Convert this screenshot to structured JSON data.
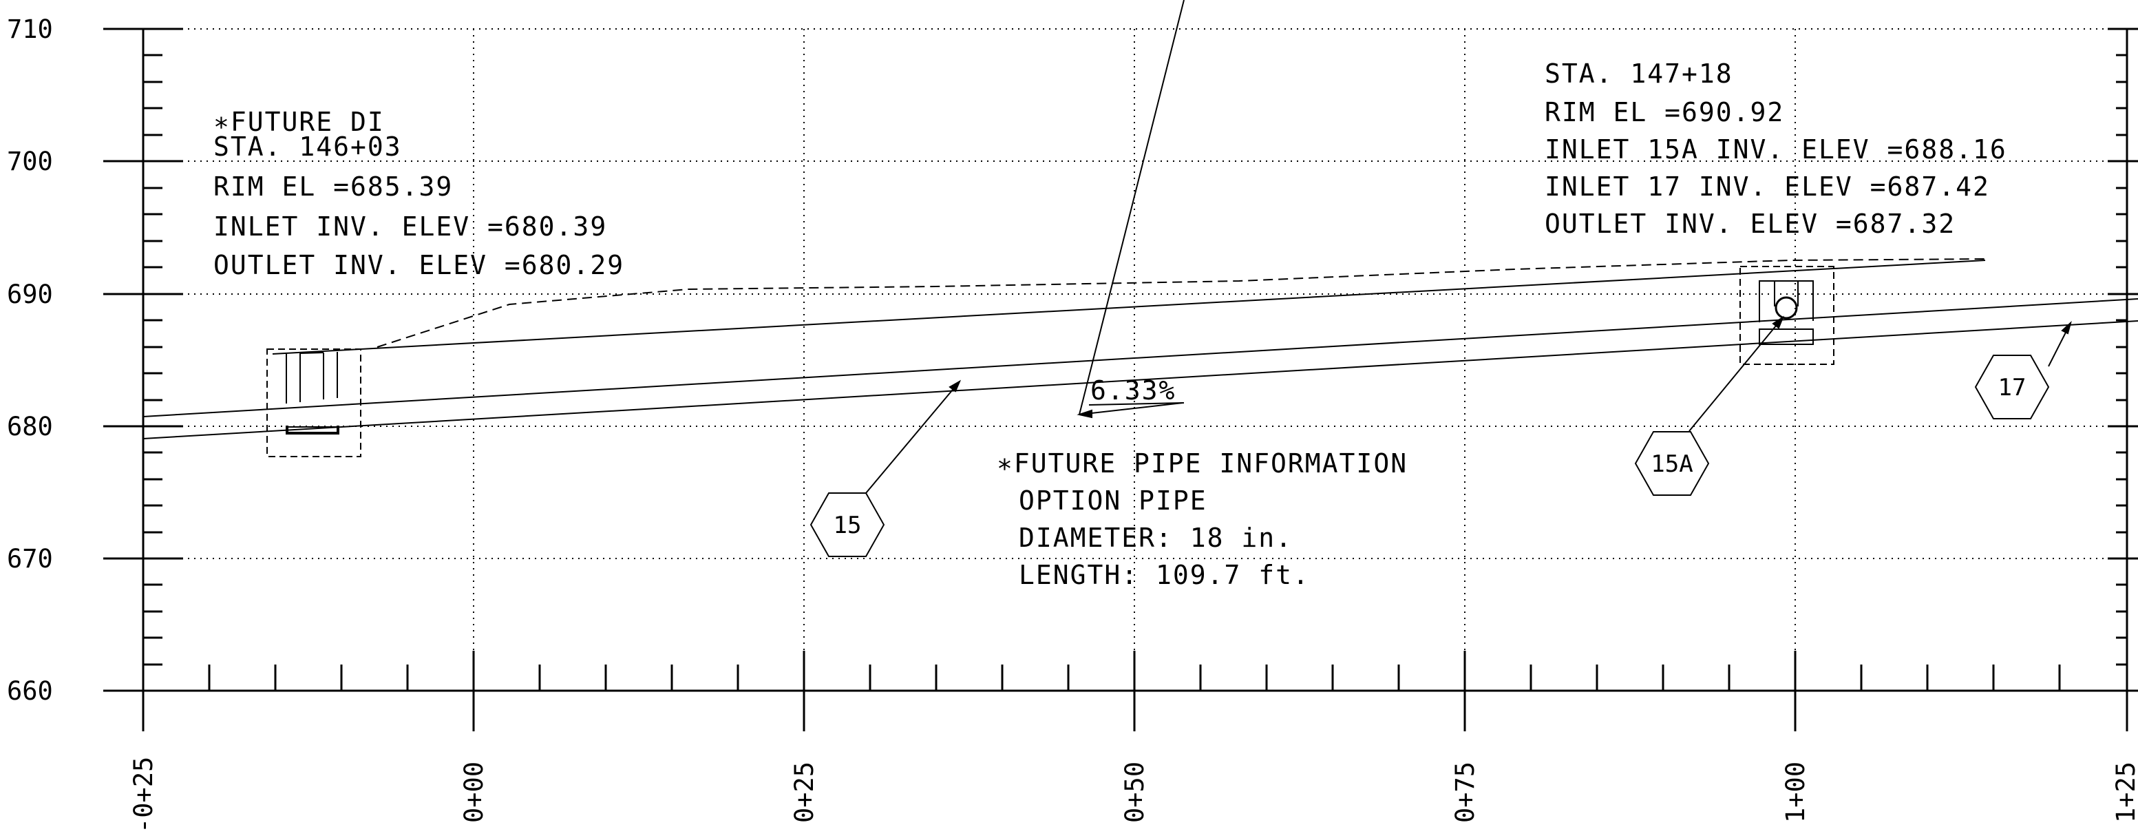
{
  "y_axis": {
    "labels": [
      "710",
      "700",
      "690",
      "680",
      "670",
      "660"
    ],
    "range": [
      660,
      710
    ],
    "units": "ft"
  },
  "x_axis": {
    "labels": [
      "-0+25",
      "0+00",
      "0+25",
      "0+50",
      "0+75",
      "1+00",
      "1+25"
    ]
  },
  "left_structure": {
    "lines": [
      "∗FUTURE DI",
      "STA. 146+03",
      "RIM EL =685.39",
      "INLET INV. ELEV =680.39",
      "OUTLET INV. ELEV =680.29"
    ]
  },
  "right_structure": {
    "lines": [
      "STA. 147+18",
      "RIM EL =690.92",
      "INLET 15A INV. ELEV =688.16",
      "INLET 17 INV. ELEV =687.42",
      "OUTLET INV. ELEV =687.32"
    ]
  },
  "pipe_info": {
    "lines": [
      "∗FUTURE PIPE INFORMATION",
      "OPTION PIPE",
      "DIAMETER: 18 in.",
      "LENGTH: 109.7 ft."
    ]
  },
  "slope_label": "6.33%",
  "tags": {
    "pipe": "15",
    "inlet_a": "15A",
    "inlet_b": "17"
  }
}
